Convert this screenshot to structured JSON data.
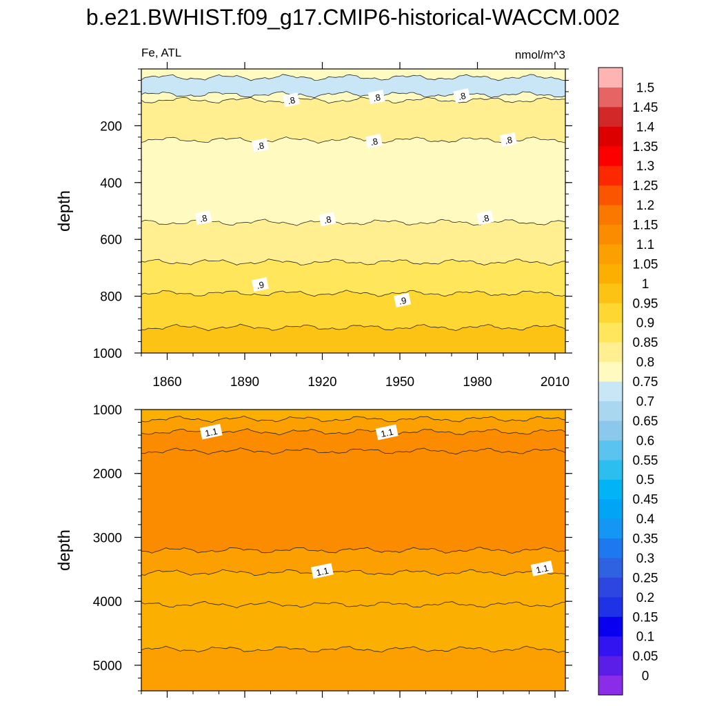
{
  "chart_data": {
    "type": "heatmap",
    "title": "b.e21.BWHIST.f09_g17.CMIP6-historical-WACCM.002",
    "variable_label": "Fe, ATL",
    "units": "nmol/m^3",
    "x": {
      "range": [
        1850,
        2014
      ],
      "ticks": [
        1860,
        1890,
        1920,
        1950,
        1980,
        2010
      ],
      "tick_labels": [
        "1860",
        "1890",
        "1920",
        "1950",
        "1980",
        "2010"
      ]
    },
    "colorbar": {
      "levels": [
        "0",
        "0.05",
        "0.1",
        "0.15",
        "0.2",
        "0.25",
        "0.3",
        "0.35",
        "0.4",
        "0.45",
        "0.5",
        "0.55",
        "0.6",
        "0.65",
        "0.7",
        "0.75",
        "0.8",
        "0.85",
        "0.9",
        "0.95",
        "1",
        "1.05",
        "1.1",
        "1.15",
        "1.2",
        "1.25",
        "1.3",
        "1.35",
        "1.4",
        "1.45",
        "1.5"
      ],
      "colors": [
        "#8b2ce8",
        "#5a1ee8",
        "#3214f0",
        "#0a00f0",
        "#1e32e6",
        "#2d46e1",
        "#2e62e1",
        "#1e78f0",
        "#1496f5",
        "#00a5f5",
        "#00b4f5",
        "#2dbef0",
        "#5ac3f0",
        "#8cc8eb",
        "#aad7f0",
        "#c8e6f5",
        "#fffac0",
        "#ffef91",
        "#ffe65a",
        "#ffd732",
        "#fcc214",
        "#fbaf00",
        "#fba000",
        "#fb8c00",
        "#fb7800",
        "#fb5500",
        "#fb2800",
        "#fc0000",
        "#dc0000",
        "#d22828",
        "#e66464",
        "#ffb4b4"
      ]
    },
    "panels": [
      {
        "y_label": "depth",
        "y_range": [
          0,
          1000
        ],
        "y_ticks": [
          200,
          400,
          600,
          800,
          1000
        ],
        "y_tick_labels": [
          "200",
          "400",
          "600",
          "800",
          "1000"
        ],
        "contours": [
          {
            "level": 0.75,
            "depth": [
              30,
              90
            ]
          },
          {
            "level": 0.8,
            "depth": [
              110,
              250,
              540
            ]
          },
          {
            "level": 0.85,
            "depth": [
              680
            ]
          },
          {
            "level": 0.9,
            "depth": [
              790
            ]
          },
          {
            "level": 0.95,
            "depth": [
              910
            ]
          }
        ],
        "contour_labels": [
          {
            "text": ".8",
            "year": 1908,
            "depth": 110
          },
          {
            "text": ".8",
            "year": 1941,
            "depth": 100
          },
          {
            "text": ".8",
            "year": 1974,
            "depth": 95
          },
          {
            "text": ".8",
            "year": 1896,
            "depth": 270
          },
          {
            "text": ".8",
            "year": 1940,
            "depth": 255
          },
          {
            "text": ".8",
            "year": 1992,
            "depth": 250
          },
          {
            "text": ".8",
            "year": 1874,
            "depth": 525
          },
          {
            "text": ".8",
            "year": 1922,
            "depth": 530
          },
          {
            "text": ".8",
            "year": 1983,
            "depth": 525
          },
          {
            "text": ".9",
            "year": 1896,
            "depth": 760
          },
          {
            "text": ".9",
            "year": 1951,
            "depth": 815
          }
        ]
      },
      {
        "y_label": "depth",
        "y_range": [
          1000,
          5400
        ],
        "y_ticks": [
          1000,
          2000,
          3000,
          4000,
          5000
        ],
        "y_tick_labels": [
          "1000",
          "2000",
          "3000",
          "4000",
          "5000"
        ],
        "contours": [
          {
            "level": 1.05,
            "depth": [
              1150
            ]
          },
          {
            "level": 1.1,
            "depth": [
              1350
            ]
          },
          {
            "level": 1.15,
            "depth": [
              1650
            ]
          },
          {
            "level": 1.1,
            "depth": [
              3200
            ]
          },
          {
            "level": 1.05,
            "depth": [
              3550
            ]
          },
          {
            "level": 1.0,
            "depth": [
              4050
            ]
          },
          {
            "level": 1.05,
            "depth": [
              4750
            ]
          }
        ],
        "contour_labels": [
          {
            "text": "1.1",
            "year": 1877,
            "depth": 1350
          },
          {
            "text": "1.1",
            "year": 1945,
            "depth": 1360
          },
          {
            "text": "1.1",
            "year": 1920,
            "depth": 3530
          },
          {
            "text": "1.1",
            "year": 2005,
            "depth": 3490
          }
        ]
      }
    ]
  }
}
